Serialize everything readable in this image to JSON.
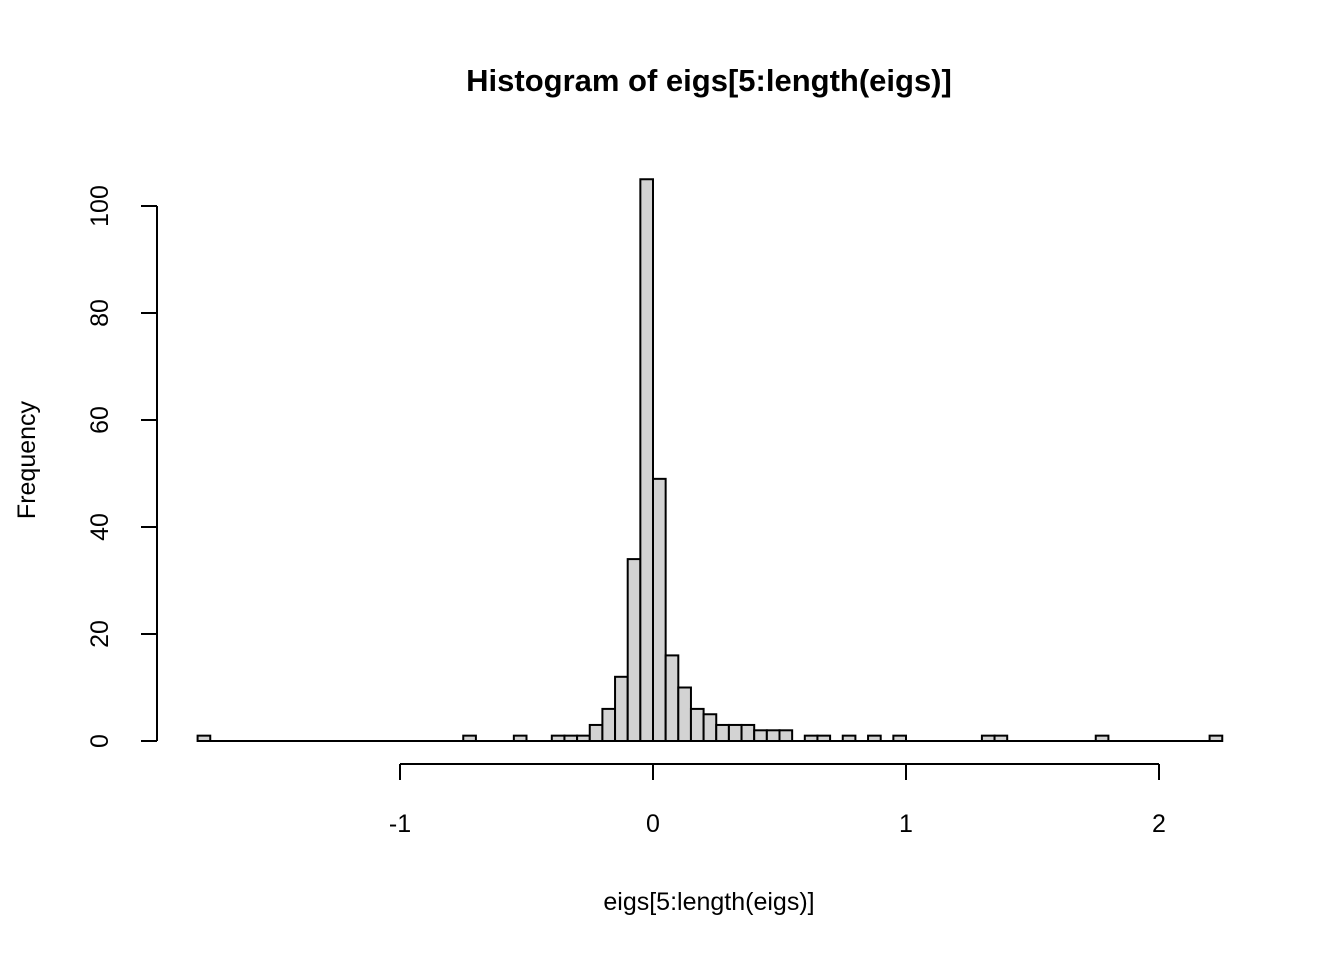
{
  "chart_data": {
    "type": "bar",
    "title": "Histogram of eigs[5:length(eigs)]",
    "xlabel": "eigs[5:length(eigs)]",
    "ylabel": "Frequency",
    "bin_width": 0.05,
    "xlim": [
      -1.8,
      2.3
    ],
    "ylim": [
      0,
      105
    ],
    "x_ticks": [
      -1,
      0,
      1,
      2
    ],
    "x_tick_labels": [
      "-1",
      "0",
      "1",
      "2"
    ],
    "y_ticks": [
      0,
      20,
      40,
      60,
      80,
      100
    ],
    "y_tick_labels": [
      "0",
      "20",
      "40",
      "60",
      "80",
      "100"
    ],
    "grid": false,
    "bar_fill": "#d3d3d3",
    "bins": [
      {
        "start": -1.8,
        "end": -1.75,
        "count": 1
      },
      {
        "start": -0.75,
        "end": -0.7,
        "count": 1
      },
      {
        "start": -0.55,
        "end": -0.5,
        "count": 1
      },
      {
        "start": -0.4,
        "end": -0.35,
        "count": 1
      },
      {
        "start": -0.35,
        "end": -0.3,
        "count": 1
      },
      {
        "start": -0.3,
        "end": -0.25,
        "count": 1
      },
      {
        "start": -0.25,
        "end": -0.2,
        "count": 3
      },
      {
        "start": -0.2,
        "end": -0.15,
        "count": 6
      },
      {
        "start": -0.15,
        "end": -0.1,
        "count": 12
      },
      {
        "start": -0.1,
        "end": -0.05,
        "count": 34
      },
      {
        "start": -0.05,
        "end": 0.0,
        "count": 105
      },
      {
        "start": 0.0,
        "end": 0.05,
        "count": 49
      },
      {
        "start": 0.05,
        "end": 0.1,
        "count": 16
      },
      {
        "start": 0.1,
        "end": 0.15,
        "count": 10
      },
      {
        "start": 0.15,
        "end": 0.2,
        "count": 6
      },
      {
        "start": 0.2,
        "end": 0.25,
        "count": 5
      },
      {
        "start": 0.25,
        "end": 0.3,
        "count": 3
      },
      {
        "start": 0.3,
        "end": 0.35,
        "count": 3
      },
      {
        "start": 0.35,
        "end": 0.4,
        "count": 3
      },
      {
        "start": 0.4,
        "end": 0.45,
        "count": 2
      },
      {
        "start": 0.45,
        "end": 0.5,
        "count": 2
      },
      {
        "start": 0.5,
        "end": 0.55,
        "count": 2
      },
      {
        "start": 0.6,
        "end": 0.65,
        "count": 1
      },
      {
        "start": 0.65,
        "end": 0.7,
        "count": 1
      },
      {
        "start": 0.75,
        "end": 0.8,
        "count": 1
      },
      {
        "start": 0.85,
        "end": 0.9,
        "count": 1
      },
      {
        "start": 0.95,
        "end": 1.0,
        "count": 1
      },
      {
        "start": 1.3,
        "end": 1.35,
        "count": 1
      },
      {
        "start": 1.35,
        "end": 1.4,
        "count": 1
      },
      {
        "start": 1.75,
        "end": 1.8,
        "count": 1
      },
      {
        "start": 2.2,
        "end": 2.25,
        "count": 1
      }
    ]
  }
}
